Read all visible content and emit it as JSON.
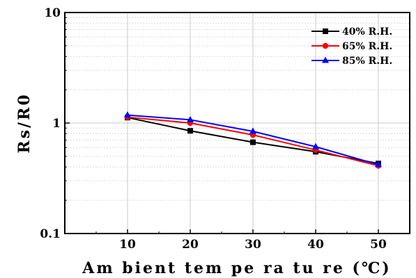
{
  "chart_data": {
    "type": "line",
    "title": "",
    "xlabel": "Am bient tem pe ra tu re (℃)",
    "ylabel": "Rs/R0",
    "x": [
      10,
      20,
      30,
      40,
      50
    ],
    "xlim": [
      0,
      55
    ],
    "xticks": [
      10,
      20,
      30,
      40,
      50
    ],
    "ylim": [
      0.1,
      10
    ],
    "yscale": "log",
    "yticks": [
      {
        "value": 0.1,
        "label": "0.1"
      },
      {
        "value": 1,
        "label": "1"
      },
      {
        "value": 10,
        "label": "10"
      }
    ],
    "grid": true,
    "legend_position": "top-right",
    "series": [
      {
        "name": "40% R.H.",
        "color": "#000000",
        "marker": "square",
        "values": [
          1.12,
          0.85,
          0.67,
          0.55,
          0.43
        ]
      },
      {
        "name": "65% R.H.",
        "color": "#ff0000",
        "marker": "circle",
        "values": [
          1.13,
          1.0,
          0.78,
          0.57,
          0.41
        ]
      },
      {
        "name": "85% R.H.",
        "color": "#0000ff",
        "marker": "triangle",
        "values": [
          1.18,
          1.07,
          0.84,
          0.61,
          0.42
        ]
      }
    ]
  }
}
